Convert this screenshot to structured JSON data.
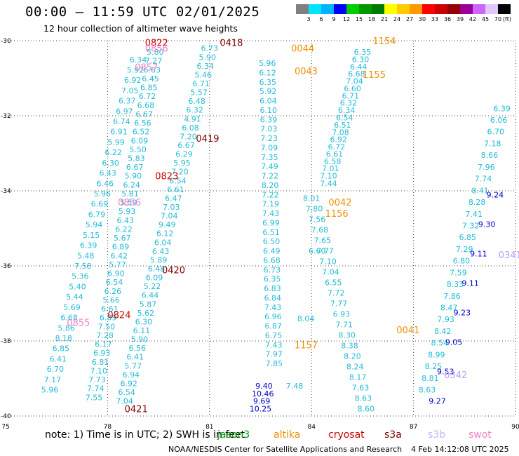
{
  "header": {
    "title": "00:00 – 11:59 UTC 02/01/2025",
    "subtitle": "12 hour collection of altimeter wave heights"
  },
  "colorbar": {
    "unit": "(ft)",
    "colors": [
      "#7f7f7f",
      "#00e5ff",
      "#00b4ff",
      "#0000ff",
      "#00cd00",
      "#009900",
      "#007a00",
      "#ffff00",
      "#ffcc00",
      "#ff9900",
      "#ff0000",
      "#cc0000",
      "#990000",
      "#990099",
      "#cc66ff",
      "#e0c8ff",
      "#000000"
    ],
    "labels": [
      "3",
      "6",
      "9",
      "12",
      "15",
      "18",
      "21",
      "24",
      "27",
      "30",
      "33",
      "36",
      "39",
      "42",
      "45",
      "70"
    ]
  },
  "map": {
    "x_ticks": [
      "75",
      "78",
      "81",
      "84",
      "87",
      "90"
    ],
    "y_ticks": [
      "-30",
      "-32",
      "-34",
      "-36",
      "-38",
      "-40"
    ],
    "lon_range": [
      75,
      90
    ],
    "lat_range": [
      -40,
      -30
    ]
  },
  "tracks": [
    {
      "color": "#22bcd6",
      "lon0": 76.3,
      "lat0": -39.3,
      "lon1": 78.9,
      "lat1": -30.5,
      "labels": [
        "5.96",
        "7.17",
        "6.70",
        "6.41",
        "6.85",
        "8.18",
        "5.86",
        "6.68",
        "5.69",
        "5.44",
        "5.40",
        "5.36",
        "7.58",
        "5.48",
        "6.39",
        "5.15",
        "5.94",
        "6.79",
        "6.69",
        "5.96",
        "6.46",
        "6.43",
        "6.30",
        "6.22",
        "5.99",
        "6.91",
        "6.74",
        "6.97",
        "6.37",
        "7.05",
        "6.92",
        "5.92",
        "6.34"
      ]
    },
    {
      "color": "#22bcd6",
      "lon0": 77.6,
      "lat0": -39.5,
      "lon1": 79.4,
      "lat1": -30.3,
      "labels": [
        "7.55",
        "7.74",
        "7.73",
        "7.10",
        "6.81",
        "6.93",
        "6.17",
        "7.28",
        "7.50",
        "6.89",
        "6.61",
        "5.66",
        "6.26",
        "6.54",
        "6.90",
        "5.77",
        "6.42",
        "6.89",
        "5.67",
        "6.22",
        "6.43",
        "5.93",
        "5.59",
        "5.81",
        "6.24",
        "5.90",
        "6.67",
        "5.83",
        "5.50",
        "6.09",
        "6.52",
        "6.56",
        "6.67",
        "6.68",
        "6.72",
        "6.85",
        "6.45",
        "6.63",
        "7.27",
        "5.80"
      ]
    },
    {
      "color": "#22bcd6",
      "lon0": 78.5,
      "lat0": -39.6,
      "lon1": 81.0,
      "lat1": -30.2,
      "labels": [
        "7.04",
        "6.54",
        "6.92",
        "6.94",
        "5.77",
        "6.41",
        "6.56",
        "5.90",
        "6.11",
        "6.30",
        "5.62",
        "5.87",
        "6.44",
        "5.22",
        "6.09",
        "6.48",
        "5.89",
        "6.43",
        "6.04",
        "6.12",
        "9.49",
        "7.04",
        "7.03",
        "6.47",
        "6.61",
        "6.54",
        "7.20",
        "5.95",
        "6.29",
        "6.67",
        "7.20",
        "6.08",
        "4.91",
        "6.32",
        "6.48",
        "5.57",
        "6.71",
        "5.46",
        "6.34",
        "5.90",
        "6.73"
      ]
    },
    {
      "color": "#22bcd6",
      "lon0": 82.9,
      "lat0": -38.6,
      "lon1": 82.7,
      "lat1": -30.6,
      "labels": [
        "7.85",
        "7.97",
        "7.43",
        "6.75",
        "6.87",
        "6.96",
        "7.43",
        "6.84",
        "6.83",
        "6.35",
        "6.73",
        "6.68",
        "6.49",
        "6.50",
        "6.51",
        "6.99",
        "7.43",
        "7.19",
        "7.22",
        "8.20",
        "7.22",
        "7.49",
        "7.35",
        "7.09",
        "7.23",
        "7.03",
        "6.39",
        "6.10",
        "6.04",
        "5.92",
        "6.35",
        "6.12",
        "5.96"
      ]
    },
    {
      "color": "#22bcd6",
      "lon0": 83.5,
      "lat0": -39.2,
      "lon1": 84.5,
      "lat1": -33.8,
      "labels": [
        "7.48",
        "8.04",
        "6.60",
        "7.44"
      ]
    },
    {
      "color": "#22bcd6",
      "lon0": 84.5,
      "lat0": -33.6,
      "lon1": 85.5,
      "lat1": -30.3,
      "labels": [
        "7.10",
        "7.01",
        "6.58",
        "6.61",
        "6.72",
        "6.92",
        "7.08",
        "6.51",
        "6.54",
        "6.34",
        "6.32",
        "6.71",
        "6.60",
        "7.04",
        "6.68",
        "6.44",
        "6.30",
        "6.35"
      ]
    },
    {
      "color": "#22bcd6",
      "lon0": 85.6,
      "lat0": -39.8,
      "lon1": 84.0,
      "lat1": -34.2,
      "labels": [
        "8.60",
        "8.63",
        "7.63",
        "8.17",
        "8.24",
        "8.20",
        "8.38",
        "8.30",
        "7.71",
        "6.93",
        "7.77",
        "7.72",
        "6.55",
        "7.04",
        "7.10",
        "7.77",
        "7.65",
        "7.68",
        "7.56",
        "7.80",
        "8.01"
      ]
    },
    {
      "color": "#0000c8",
      "lon0": 82.5,
      "lat0": -39.8,
      "lon1": 82.6,
      "lat1": -39.2,
      "labels": [
        "10.25",
        "9.69",
        "10.46",
        "9.40"
      ]
    },
    {
      "color": "#22bcd6",
      "lon0": 87.4,
      "lat0": -39.3,
      "lon1": 89.6,
      "lat1": -31.8,
      "labels": [
        "8.63",
        "8.81",
        "8.25",
        "8.99",
        "8.54",
        "8.42",
        "7.93",
        "8.47",
        "7.86",
        "8.33",
        "7.59",
        "6.80",
        "7.29",
        "6.85",
        "7.32",
        "7.41",
        "8.28",
        "8.41",
        "7.74",
        "7.96",
        "8.66",
        "7.18",
        "6.70",
        "6.06",
        "6.39"
      ]
    },
    {
      "color": "#0000c8",
      "lon0": 87.7,
      "lat0": -39.6,
      "lon1": 89.4,
      "lat1": -34.1,
      "labels": [
        "9.27",
        "9.53",
        "9.05",
        "9.23",
        "9.11",
        "9.11",
        "9.30",
        "9.24"
      ]
    }
  ],
  "time_labels": [
    {
      "text": "0822",
      "color": "#cc0000",
      "lon": 79.1,
      "lat": -30.05
    },
    {
      "text": "0856",
      "color": "#ee82c8",
      "lon": 79.1,
      "lat": -30.2
    },
    {
      "text": "0857",
      "color": "#ee82c8",
      "lon": 78.8,
      "lat": -30.7
    },
    {
      "text": "0823",
      "color": "#cc0000",
      "lon": 79.4,
      "lat": -33.6
    },
    {
      "text": "0856",
      "color": "#ee82c8",
      "lon": 78.3,
      "lat": -34.3
    },
    {
      "text": "0824",
      "color": "#cc0000",
      "lon": 78.0,
      "lat": -37.3
    },
    {
      "text": "0855",
      "color": "#ee82c8",
      "lon": 76.8,
      "lat": -37.5
    },
    {
      "text": "0418",
      "color": "#800000",
      "lon": 81.3,
      "lat": -30.05
    },
    {
      "text": "0419",
      "color": "#800000",
      "lon": 80.6,
      "lat": -32.6
    },
    {
      "text": "0420",
      "color": "#800000",
      "lon": 79.6,
      "lat": -36.1
    },
    {
      "text": "0421",
      "color": "#800000",
      "lon": 78.5,
      "lat": -39.8
    },
    {
      "text": "0044",
      "color": "#f09000",
      "lon": 83.4,
      "lat": -30.2
    },
    {
      "text": "0043",
      "color": "#f09000",
      "lon": 83.5,
      "lat": -30.8
    },
    {
      "text": "0042",
      "color": "#f09000",
      "lon": 84.5,
      "lat": -34.3
    },
    {
      "text": "0041",
      "color": "#f09000",
      "lon": 86.5,
      "lat": -37.7
    },
    {
      "text": "1154",
      "color": "#f09000",
      "lon": 85.8,
      "lat": -30.0
    },
    {
      "text": "1155",
      "color": "#f09000",
      "lon": 85.5,
      "lat": -30.9
    },
    {
      "text": "1156",
      "color": "#f09000",
      "lon": 84.4,
      "lat": -34.6
    },
    {
      "text": "1157",
      "color": "#f09000",
      "lon": 83.5,
      "lat": -38.1
    },
    {
      "text": "0341",
      "color": "#b8a0f0",
      "lon": 89.5,
      "lat": -35.7
    },
    {
      "text": "0342",
      "color": "#b8a0f0",
      "lon": 87.9,
      "lat": -38.9
    }
  ],
  "footer": {
    "note": "note: 1) Time is in UTC; 2) SWH is in feet",
    "satellites": [
      {
        "name": "jason3",
        "color": "#009900"
      },
      {
        "name": "altika",
        "color": "#f09000"
      },
      {
        "name": "cryosat",
        "color": "#cc0000"
      },
      {
        "name": "s3a",
        "color": "#800000"
      },
      {
        "name": "s3b",
        "color": "#c8b4f0"
      },
      {
        "name": "swot",
        "color": "#ee82c8"
      }
    ],
    "credit": "NOAA/NESDIS Center for Satellite Applications and Research",
    "timestamp": "4 Feb 14:12:08 UTC 2025"
  }
}
